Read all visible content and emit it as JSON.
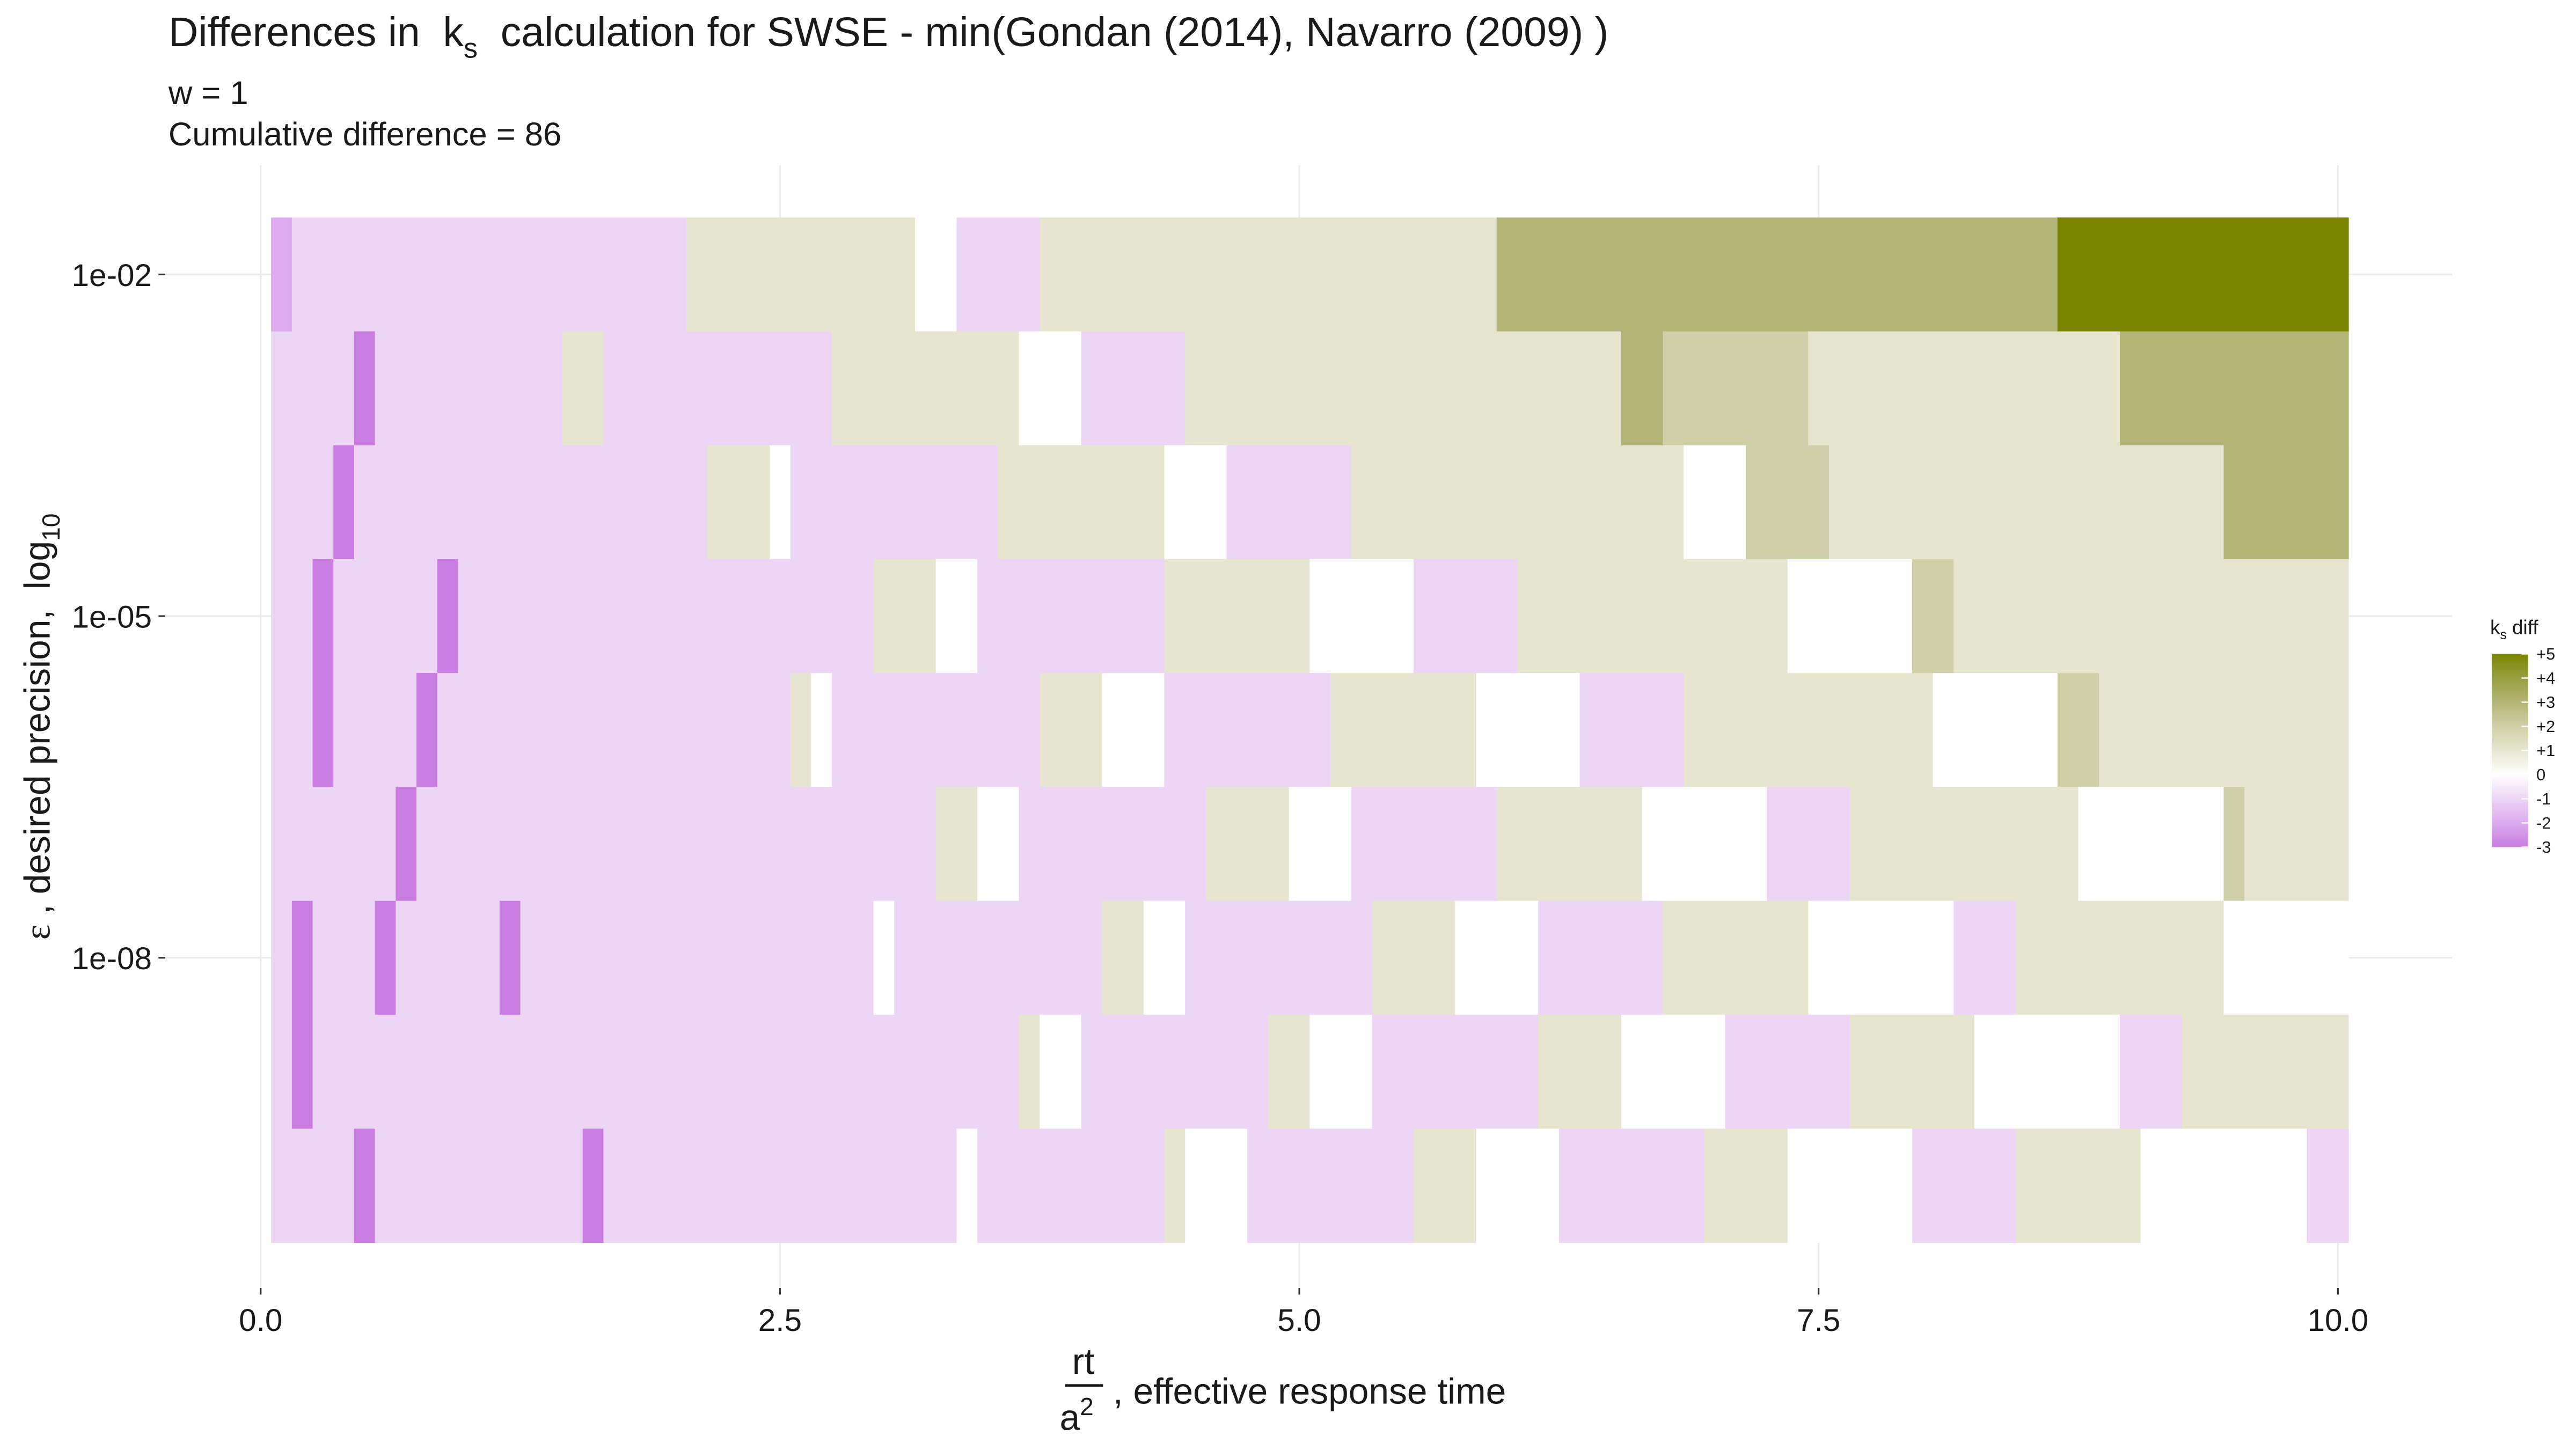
{
  "chart_data": {
    "type": "heatmap",
    "title": [
      "Differences in  k",
      "s",
      "  calculation for SWSE - min(Gondan (2014), Navarro (2009) )"
    ],
    "subtitle": [
      "w = 1",
      "Cumulative difference = 86"
    ],
    "x_label": {
      "numerator": "rt",
      "denominator": "a",
      "exponent": "2",
      "text": ", effective response time"
    },
    "y_label": [
      "ε",
      " , desired precision,  log",
      "10"
    ],
    "xlim": [
      -0.46,
      10.55
    ],
    "xticks": [
      {
        "value": 0,
        "label": "0.0"
      },
      2.5,
      {
        "value": 5,
        "label": "5.0"
      },
      7.5,
      {
        "value": 10,
        "label": "10.0"
      }
    ],
    "ylim": [
      1.26e-11,
      0.0912
    ],
    "log_y": true,
    "yticks": [
      {
        "value": 0.01,
        "label": "1e-02"
      },
      {
        "value": 1e-05,
        "label": "1e-05"
      },
      {
        "value": 1e-08,
        "label": "1e-08"
      }
    ],
    "grid": true,
    "legend_title": [
      "k",
      "s",
      " diff"
    ],
    "legend_position": "right",
    "colorscale": [
      {
        "value": -3,
        "color": "#c97de0"
      },
      {
        "value": -2,
        "color": "#dcaaee"
      },
      {
        "value": -1,
        "color": "#edd5f5"
      },
      {
        "value": 0,
        "color": "#ffffff"
      },
      {
        "value": 1,
        "color": "#e6e6d0"
      },
      {
        "value": 2,
        "color": "#d0d0a8"
      },
      {
        "value": 3,
        "color": "#b3b576"
      },
      {
        "value": 4,
        "color": "#97a040"
      },
      {
        "value": 5,
        "color": "#7b8500"
      }
    ],
    "legend_ticks": [
      {
        "value": 5,
        "label": "+5"
      },
      {
        "value": 4,
        "label": "+4"
      },
      {
        "value": 3,
        "label": "+3"
      },
      {
        "value": 2,
        "label": "+2"
      },
      {
        "value": 1,
        "label": "+1"
      },
      0,
      -1,
      -2,
      -3
    ],
    "rows": [
      {
        "epsilon": 0.01,
        "edges": [
          0.05,
          0.15,
          2.05,
          3.15,
          3.35,
          3.75,
          5.95,
          8.65,
          10.05
        ],
        "values": [
          -2,
          -1,
          1,
          0,
          -1,
          1,
          3,
          5
        ]
      },
      {
        "epsilon": 0.001,
        "edges": [
          0.05,
          0.45,
          0.55,
          1.45,
          1.65,
          2.75,
          3.65,
          3.95,
          4.45,
          6.55,
          6.75,
          7.45,
          8.95,
          10.05
        ],
        "values": [
          -1,
          -3,
          -1,
          1,
          -1,
          1,
          0,
          -1,
          1,
          3,
          2,
          1,
          3
        ]
      },
      {
        "epsilon": 0.0001,
        "edges": [
          0.05,
          0.35,
          0.45,
          2.15,
          2.45,
          2.55,
          3.55,
          4.35,
          4.65,
          5.25,
          6.85,
          7.15,
          7.55,
          9.45,
          10.05
        ],
        "values": [
          -1,
          -3,
          -1,
          1,
          0,
          -1,
          1,
          0,
          -1,
          1,
          0,
          2,
          1,
          3
        ]
      },
      {
        "epsilon": 1e-05,
        "edges": [
          0.05,
          0.25,
          0.35,
          0.85,
          0.95,
          2.95,
          3.25,
          3.45,
          4.35,
          5.05,
          5.55,
          6.05,
          7.35,
          7.95,
          8.15,
          10.05
        ],
        "values": [
          -1,
          -3,
          -1,
          -3,
          -1,
          1,
          0,
          -1,
          1,
          0,
          -1,
          1,
          0,
          2,
          1
        ]
      },
      {
        "epsilon": 1e-06,
        "edges": [
          0.05,
          0.25,
          0.35,
          0.75,
          0.85,
          2.55,
          2.65,
          2.75,
          3.75,
          4.05,
          4.35,
          5.15,
          5.85,
          6.35,
          6.85,
          8.05,
          8.65,
          8.85,
          10.05
        ],
        "values": [
          -1,
          -3,
          -1,
          -3,
          -1,
          1,
          0,
          -1,
          1,
          0,
          -1,
          1,
          0,
          -1,
          1,
          0,
          2,
          1
        ]
      },
      {
        "epsilon": 1e-07,
        "edges": [
          0.05,
          0.65,
          0.75,
          3.25,
          3.45,
          3.65,
          4.55,
          4.95,
          5.25,
          5.95,
          6.65,
          7.25,
          7.65,
          8.75,
          9.45,
          9.55,
          10.05
        ],
        "values": [
          -1,
          -3,
          -1,
          1,
          0,
          -1,
          1,
          0,
          -1,
          1,
          0,
          -1,
          1,
          0,
          2,
          1
        ]
      },
      {
        "epsilon": 1e-08,
        "edges": [
          0.05,
          0.15,
          0.25,
          0.55,
          0.65,
          1.15,
          1.25,
          2.95,
          3.05,
          4.05,
          4.25,
          4.45,
          5.35,
          5.75,
          6.15,
          6.75,
          7.45,
          8.15,
          8.45,
          9.45,
          10.05
        ],
        "values": [
          -1,
          -3,
          -1,
          -3,
          -1,
          -3,
          -1,
          0,
          -1,
          1,
          0,
          -1,
          1,
          0,
          -1,
          1,
          0,
          -1,
          1,
          0
        ]
      },
      {
        "epsilon": 1e-09,
        "edges": [
          0.05,
          0.15,
          0.25,
          3.65,
          3.75,
          3.95,
          4.85,
          5.05,
          5.35,
          6.15,
          6.55,
          7.05,
          7.65,
          8.25,
          8.95,
          9.25,
          10.05
        ],
        "values": [
          -1,
          -3,
          -1,
          1,
          0,
          -1,
          1,
          0,
          -1,
          1,
          0,
          -1,
          1,
          0,
          -1,
          1
        ]
      },
      {
        "epsilon": 1e-10,
        "edges": [
          0.05,
          0.45,
          0.55,
          1.55,
          1.65,
          3.35,
          3.45,
          4.35,
          4.45,
          4.75,
          5.55,
          5.85,
          6.25,
          6.95,
          7.35,
          7.95,
          8.45,
          9.05,
          9.85,
          10.05
        ],
        "values": [
          -1,
          -3,
          -1,
          -3,
          -1,
          0,
          -1,
          1,
          0,
          -1,
          1,
          0,
          -1,
          1,
          0,
          -1,
          1,
          0,
          -1
        ]
      }
    ]
  }
}
